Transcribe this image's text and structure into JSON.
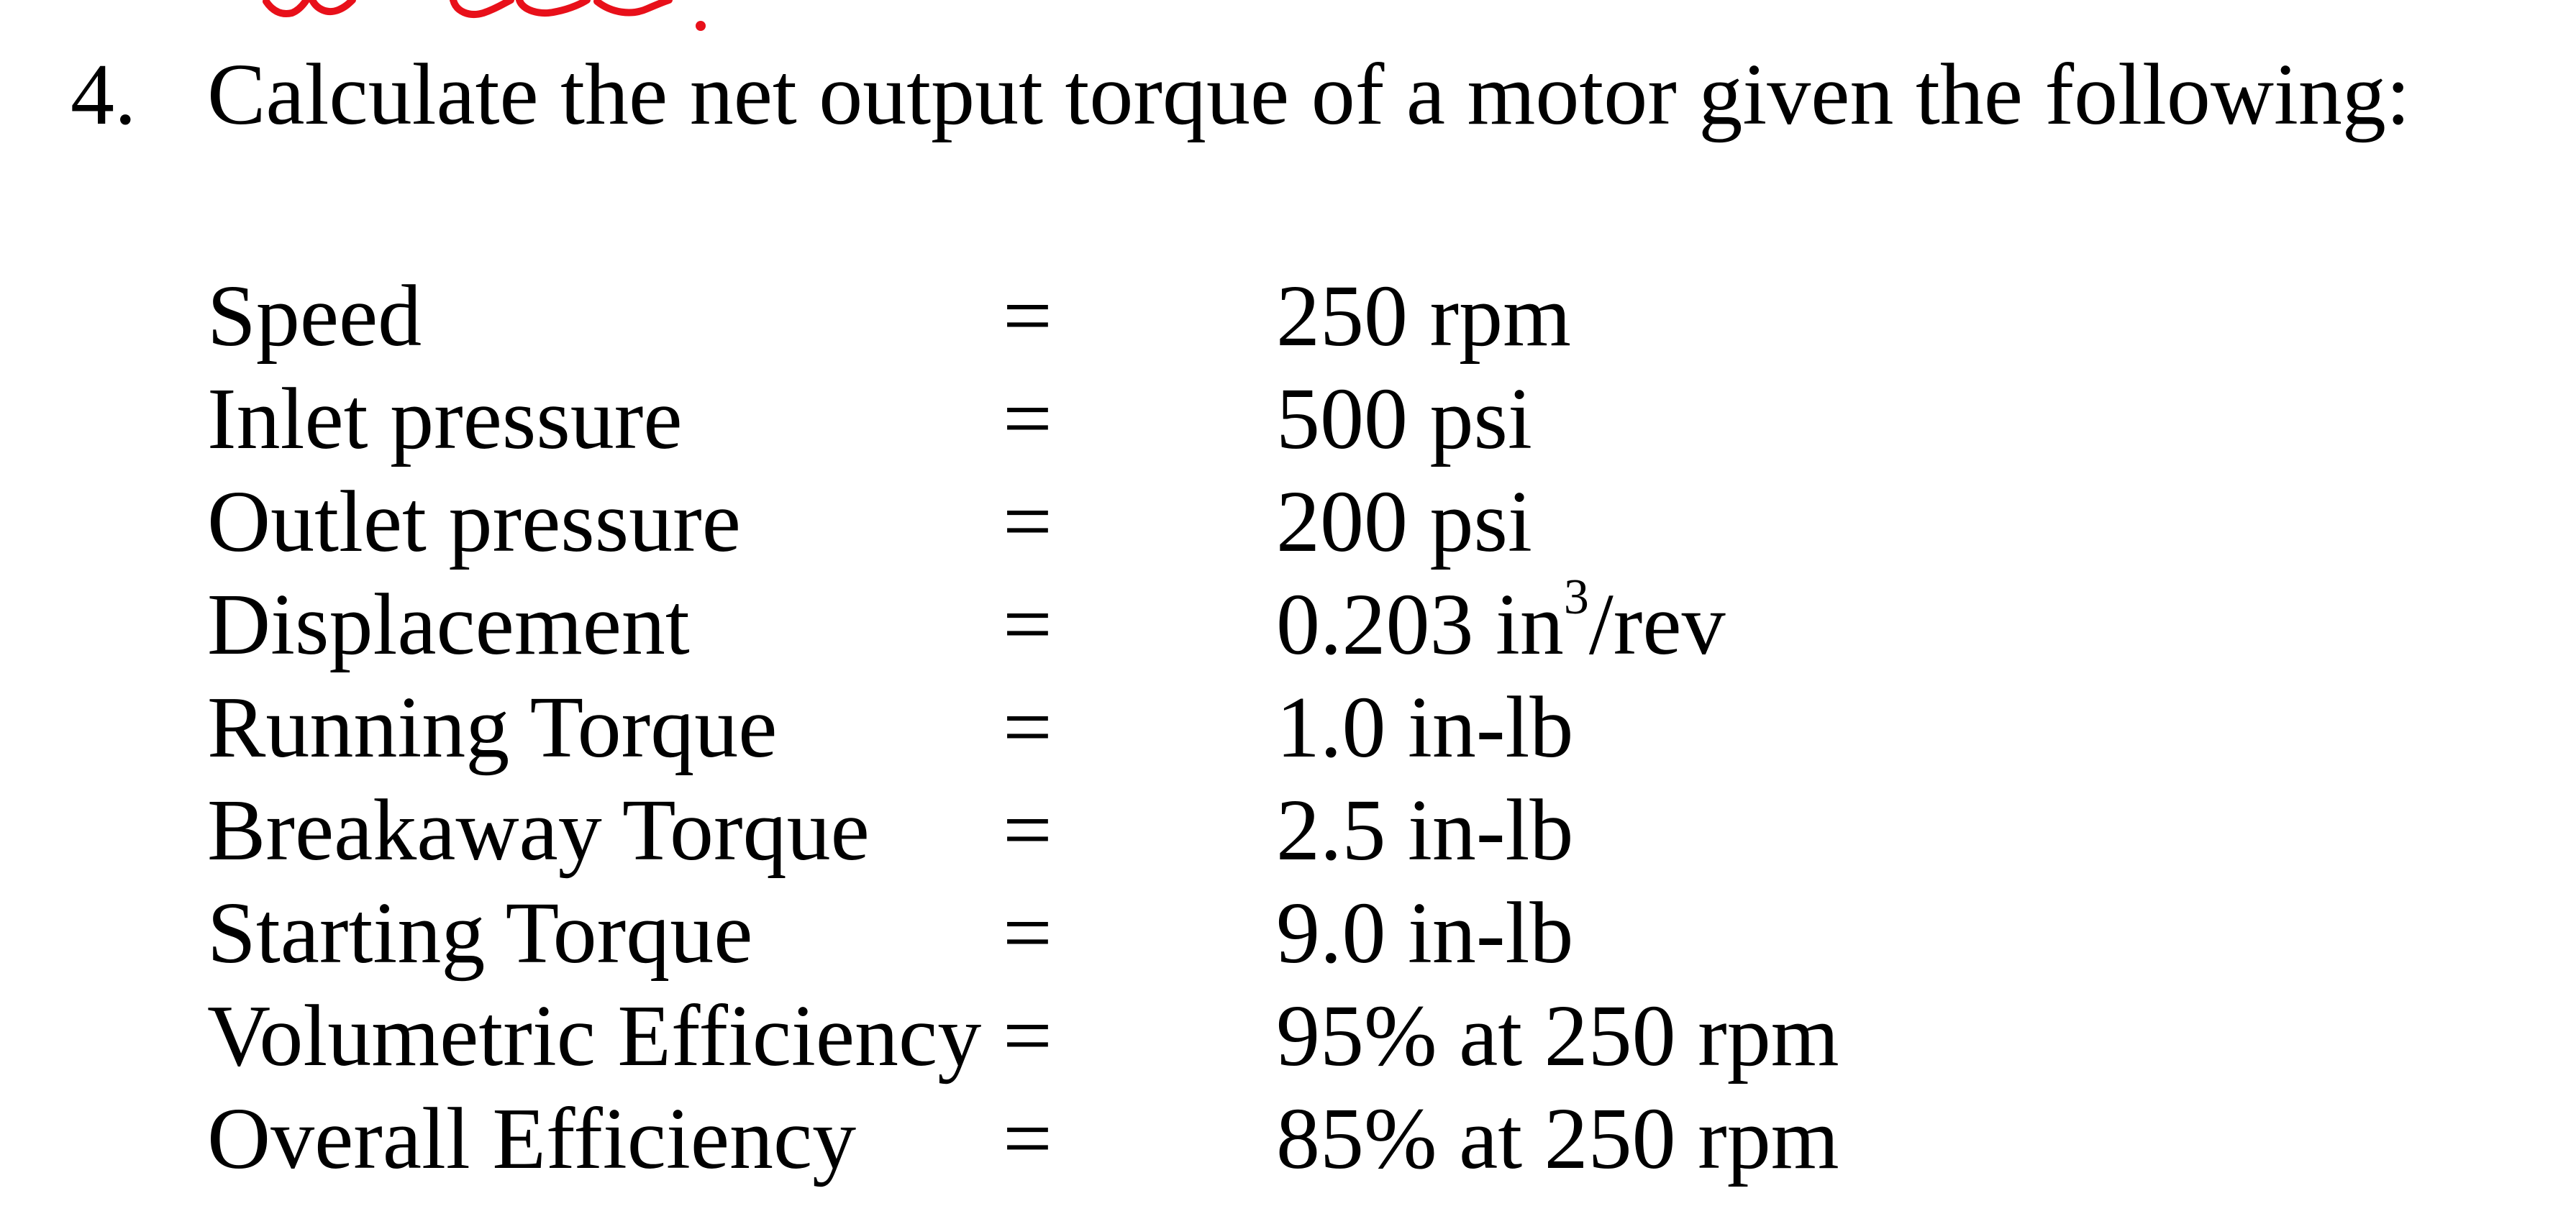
{
  "question": {
    "number": "4.",
    "text": "Calculate the net output torque of a motor given the following:"
  },
  "annotation": {
    "color": "#e8101a"
  },
  "parameters": [
    {
      "label": "Speed",
      "eq": "=",
      "value": "250 rpm"
    },
    {
      "label": "Inlet pressure",
      "eq": "=",
      "value": "500 psi"
    },
    {
      "label": "Outlet pressure",
      "eq": "=",
      "value": "200 psi"
    },
    {
      "label": "Displacement",
      "eq": "=",
      "value_main": "0.203 in",
      "value_sup": "3",
      "value_tail": "/rev"
    },
    {
      "label": "Running Torque",
      "eq": "=",
      "value": "1.0 in-lb"
    },
    {
      "label": "Breakaway Torque",
      "eq": "=",
      "value": "2.5 in-lb"
    },
    {
      "label": "Starting Torque",
      "eq": "=",
      "value": "9.0 in-lb"
    },
    {
      "label": "Volumetric Efficiency",
      "eq": "=",
      "value": "95% at 250 rpm"
    },
    {
      "label": "Overall Efficiency",
      "eq": "=",
      "value": "85% at 250 rpm"
    }
  ]
}
